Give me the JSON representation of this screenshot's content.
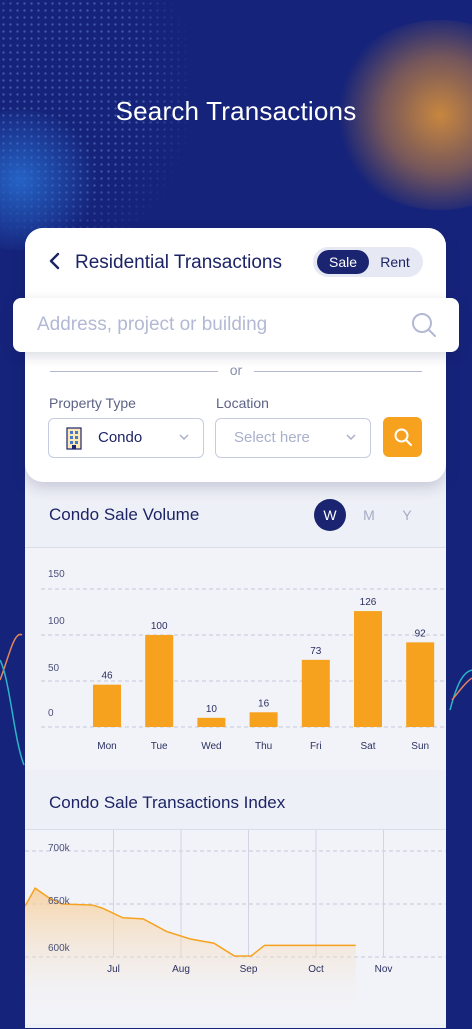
{
  "headline": "Search Transactions",
  "header": {
    "title": "Residential Transactions",
    "toggle": {
      "sale": "Sale",
      "rent": "Rent",
      "selected": "Sale"
    }
  },
  "search": {
    "placeholder": "Address, project or building"
  },
  "or_label": "or",
  "filters": {
    "property_type": {
      "label": "Property Type",
      "value": "Condo"
    },
    "location": {
      "label": "Location",
      "placeholder": "Select here"
    }
  },
  "volume": {
    "title": "Condo Sale Volume",
    "periods": [
      "W",
      "M",
      "Y"
    ],
    "selected_period": "W"
  },
  "index": {
    "title": "Condo Sale Transactions Index"
  },
  "colors": {
    "navy": "#1a2470",
    "accent": "#f6a21e",
    "background": "#15237a"
  },
  "icons": {
    "back": "chevron-left-icon",
    "search": "search-icon",
    "building": "building-icon",
    "dropdown": "chevron-down-icon"
  },
  "chart_data": [
    {
      "type": "bar",
      "categories": [
        "Mon",
        "Tue",
        "Wed",
        "Thu",
        "Fri",
        "Sat",
        "Sun"
      ],
      "values": [
        46,
        100,
        10,
        16,
        73,
        126,
        92
      ],
      "y_ticks": [
        0,
        50,
        100,
        150
      ],
      "ylim": [
        0,
        150
      ],
      "grid": true,
      "bar_color": "#f6a21e"
    },
    {
      "type": "area",
      "x_labels": [
        "Jul",
        "Aug",
        "Sep",
        "Oct",
        "Nov"
      ],
      "y_ticks": [
        "600k",
        "650k",
        "700k"
      ],
      "ylim": [
        600000,
        700000
      ],
      "points": [
        {
          "x": 0.0,
          "y": 648000
        },
        {
          "x": 0.15,
          "y": 665000
        },
        {
          "x": 0.35,
          "y": 656000
        },
        {
          "x": 0.55,
          "y": 650000
        },
        {
          "x": 1.0,
          "y": 649000
        },
        {
          "x": 1.15,
          "y": 646000
        },
        {
          "x": 1.45,
          "y": 637000
        },
        {
          "x": 1.75,
          "y": 636000
        },
        {
          "x": 2.1,
          "y": 624000
        },
        {
          "x": 2.45,
          "y": 617000
        },
        {
          "x": 2.8,
          "y": 613000
        },
        {
          "x": 3.1,
          "y": 601000
        },
        {
          "x": 3.35,
          "y": 601000
        },
        {
          "x": 3.55,
          "y": 611000
        },
        {
          "x": 4.0,
          "y": 611000
        },
        {
          "x": 4.9,
          "y": 611000
        }
      ],
      "line_color": "#f6a21e"
    }
  ]
}
